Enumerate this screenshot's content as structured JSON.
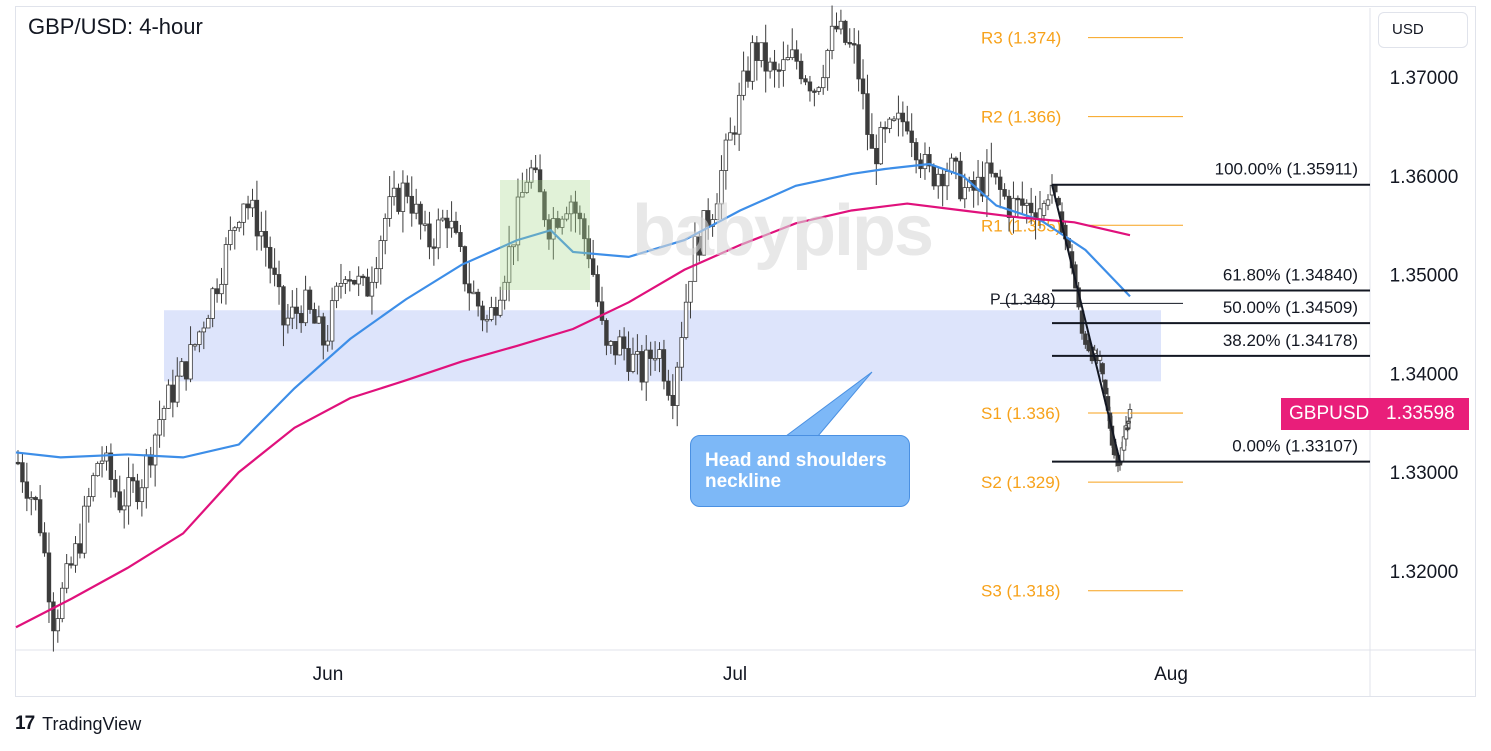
{
  "header": {
    "title": "GBP/USD: 4-hour",
    "currency_button": "USD"
  },
  "branding": {
    "tradingview": "TradingView",
    "watermark": "babypips"
  },
  "price_tag": {
    "symbol": "GBPUSD",
    "value": "1.33598",
    "color": "#e91e7a"
  },
  "annotation": {
    "text": "Head and shoulders neckline"
  },
  "colors": {
    "sma_fast": "#3d8ee8",
    "sma_slow": "#e0117c",
    "pivot": "#f7a21b",
    "fib": "#131722",
    "neckline_zone": "#dde4fb",
    "candle": "#3c3c3c"
  },
  "chart_data": {
    "type": "candlestick",
    "title": "GBP/USD: 4-hour",
    "y_axis": {
      "unit": "USD",
      "range": [
        1.312,
        1.377
      ],
      "ticks": [
        "1.32000",
        "1.33000",
        "1.34000",
        "1.35000",
        "1.36000",
        "1.37000"
      ]
    },
    "x_axis": {
      "ticks": [
        "Jun",
        "Jul",
        "Aug"
      ]
    },
    "pivot_levels": [
      {
        "label": "R3 (1.374)",
        "value": 1.374
      },
      {
        "label": "R2 (1.366)",
        "value": 1.366
      },
      {
        "label": "R1 (1.355)",
        "value": 1.355
      },
      {
        "label": "P (1.348)",
        "value": 1.3475
      },
      {
        "label": "S1 (1.336)",
        "value": 1.336
      },
      {
        "label": "S2 (1.329)",
        "value": 1.329
      },
      {
        "label": "S3 (1.318)",
        "value": 1.318
      }
    ],
    "fibonacci": [
      {
        "label": "100.00% (1.35911)",
        "value": 1.35911
      },
      {
        "label": "61.80% (1.34840)",
        "value": 1.3484
      },
      {
        "label": "50.00% (1.34509)",
        "value": 1.34509
      },
      {
        "label": "38.20% (1.34178)",
        "value": 1.34178
      },
      {
        "label": "0.00% (1.33107)",
        "value": 1.33107
      }
    ],
    "neckline_zone": {
      "low": 1.3392,
      "high": 1.3464
    },
    "last_price": 1.33598,
    "sma_fast": [
      [
        0,
        1.332
      ],
      [
        0.04,
        1.3315
      ],
      [
        0.1,
        1.3318
      ],
      [
        0.15,
        1.3315
      ],
      [
        0.2,
        1.3328
      ],
      [
        0.25,
        1.3385
      ],
      [
        0.3,
        1.3435
      ],
      [
        0.35,
        1.3475
      ],
      [
        0.4,
        1.351
      ],
      [
        0.45,
        1.3535
      ],
      [
        0.48,
        1.3545
      ],
      [
        0.5,
        1.3523
      ],
      [
        0.55,
        1.3518
      ],
      [
        0.6,
        1.3535
      ],
      [
        0.65,
        1.3565
      ],
      [
        0.7,
        1.359
      ],
      [
        0.75,
        1.3602
      ],
      [
        0.78,
        1.3607
      ],
      [
        0.82,
        1.3612
      ],
      [
        0.85,
        1.36
      ],
      [
        0.88,
        1.357
      ],
      [
        0.92,
        1.3555
      ],
      [
        0.96,
        1.3525
      ],
      [
        1,
        1.3478
      ]
    ],
    "sma_slow": [
      [
        0,
        1.3143
      ],
      [
        0.05,
        1.3172
      ],
      [
        0.1,
        1.3203
      ],
      [
        0.15,
        1.3238
      ],
      [
        0.2,
        1.33
      ],
      [
        0.25,
        1.3345
      ],
      [
        0.3,
        1.3375
      ],
      [
        0.35,
        1.3393
      ],
      [
        0.4,
        1.3412
      ],
      [
        0.45,
        1.3428
      ],
      [
        0.5,
        1.3445
      ],
      [
        0.55,
        1.3472
      ],
      [
        0.6,
        1.3505
      ],
      [
        0.65,
        1.353
      ],
      [
        0.7,
        1.3552
      ],
      [
        0.75,
        1.3565
      ],
      [
        0.8,
        1.3572
      ],
      [
        0.85,
        1.3565
      ],
      [
        0.9,
        1.3558
      ],
      [
        0.95,
        1.3553
      ],
      [
        1,
        1.354
      ]
    ],
    "close_path": [
      [
        0,
        1.331
      ],
      [
        0.02,
        1.326
      ],
      [
        0.035,
        1.315
      ],
      [
        0.06,
        1.323
      ],
      [
        0.08,
        1.332
      ],
      [
        0.1,
        1.327
      ],
      [
        0.12,
        1.329
      ],
      [
        0.14,
        1.336
      ],
      [
        0.17,
        1.342
      ],
      [
        0.2,
        1.351
      ],
      [
        0.22,
        1.358
      ],
      [
        0.24,
        1.354
      ],
      [
        0.26,
        1.345
      ],
      [
        0.28,
        1.347
      ],
      [
        0.3,
        1.343
      ],
      [
        0.32,
        1.351
      ],
      [
        0.34,
        1.348
      ],
      [
        0.36,
        1.356
      ],
      [
        0.38,
        1.359
      ],
      [
        0.4,
        1.353
      ],
      [
        0.42,
        1.356
      ],
      [
        0.44,
        1.349
      ],
      [
        0.46,
        1.345
      ],
      [
        0.48,
        1.352
      ],
      [
        0.5,
        1.361
      ],
      [
        0.52,
        1.355
      ],
      [
        0.54,
        1.358
      ],
      [
        0.56,
        1.352
      ],
      [
        0.575,
        1.342
      ],
      [
        0.59,
        1.343
      ],
      [
        0.61,
        1.34
      ],
      [
        0.625,
        1.343
      ],
      [
        0.64,
        1.338
      ],
      [
        0.66,
        1.352
      ],
      [
        0.68,
        1.357
      ],
      [
        0.7,
        1.365
      ],
      [
        0.72,
        1.373
      ],
      [
        0.74,
        1.37
      ],
      [
        0.76,
        1.372
      ],
      [
        0.78,
        1.369
      ],
      [
        0.8,
        1.375
      ],
      [
        0.82,
        1.372
      ],
      [
        0.835,
        1.362
      ],
      [
        0.85,
        1.364
      ],
      [
        0.87,
        1.366
      ],
      [
        0.89,
        1.36
      ],
      [
        0.91,
        1.361
      ],
      [
        0.93,
        1.358
      ],
      [
        0.95,
        1.36
      ],
      [
        0.97,
        1.357
      ]
    ]
  }
}
